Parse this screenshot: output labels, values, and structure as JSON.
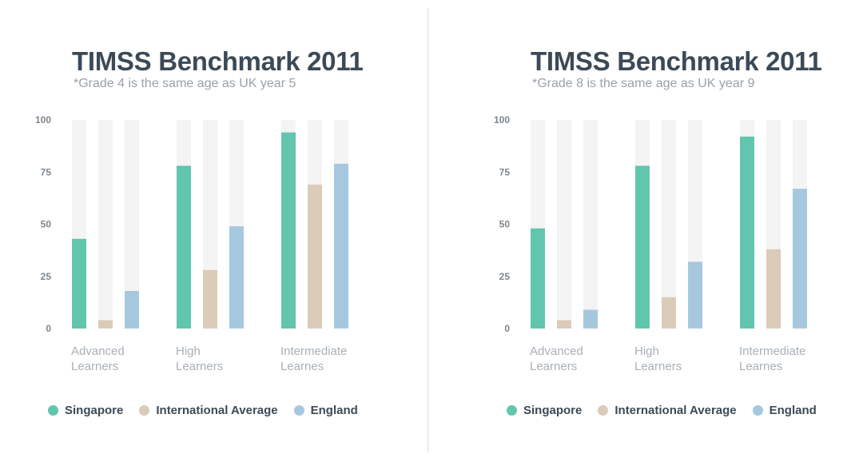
{
  "colors": {
    "singapore": "#62c5ad",
    "international": "#dbcbb9",
    "england": "#a6c8df",
    "track": "#f4f4f4"
  },
  "chart_data": [
    {
      "type": "bar",
      "title": "TIMSS Benchmark 2011",
      "subtitle": "*Grade 4 is the same age as UK year 5",
      "categories": [
        [
          "Advanced",
          "Learners"
        ],
        [
          "High",
          "Learners"
        ],
        [
          "Intermediate",
          "Learnes"
        ]
      ],
      "series": [
        {
          "name": "Singapore",
          "values": [
            43,
            78,
            94
          ]
        },
        {
          "name": "International Average",
          "values": [
            4,
            28,
            69
          ]
        },
        {
          "name": "England",
          "values": [
            18,
            49,
            79
          ]
        }
      ],
      "yticks": [
        0,
        25,
        50,
        75,
        100
      ],
      "ylim": [
        0,
        100
      ],
      "legend": "bottom"
    },
    {
      "type": "bar",
      "title": "TIMSS Benchmark 2011",
      "subtitle": "*Grade 8 is the same age as UK year 9",
      "categories": [
        [
          "Advanced",
          "Learners"
        ],
        [
          "High",
          "Learners"
        ],
        [
          "Intermediate",
          "Learnes"
        ]
      ],
      "series": [
        {
          "name": "Singapore",
          "values": [
            48,
            78,
            92
          ]
        },
        {
          "name": "International Average",
          "values": [
            4,
            15,
            38
          ]
        },
        {
          "name": "England",
          "values": [
            9,
            32,
            67
          ]
        }
      ],
      "yticks": [
        0,
        25,
        50,
        75,
        100
      ],
      "ylim": [
        0,
        100
      ],
      "legend": "bottom"
    }
  ]
}
